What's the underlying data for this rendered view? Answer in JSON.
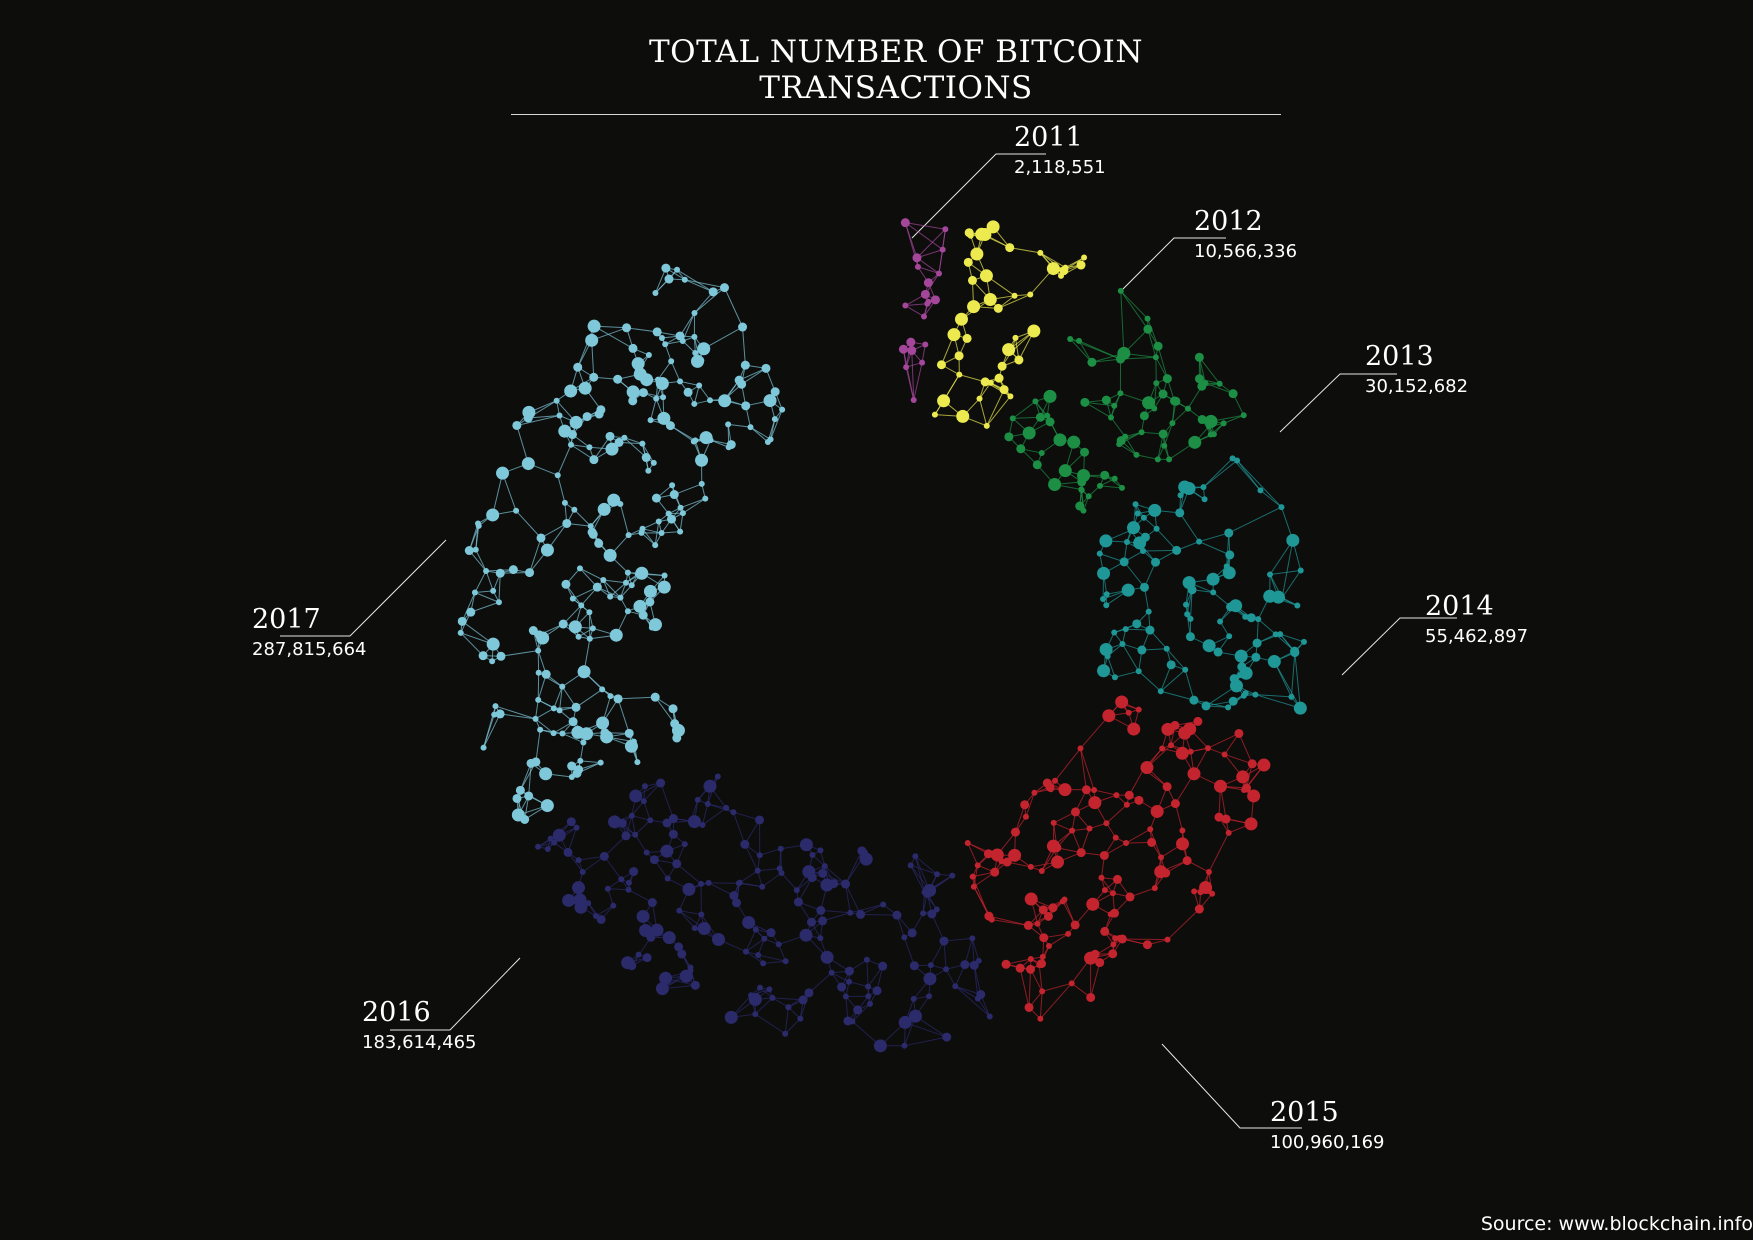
{
  "title": "TOTAL NUMBER OF BITCOIN TRANSACTIONS",
  "source": "Source: www.blockchain.info",
  "chart_data": {
    "type": "pie",
    "style": "network-ring",
    "legend": "none",
    "grid": false,
    "series": [
      {
        "year": "2011",
        "value": 2118551,
        "label": "2,118,551",
        "color": "#a4479b"
      },
      {
        "year": "2012",
        "value": 10566336,
        "label": "10,566,336",
        "color": "#ecea4e"
      },
      {
        "year": "2013",
        "value": 30152682,
        "label": "30,152,682",
        "color": "#1c8f45"
      },
      {
        "year": "2014",
        "value": 55462897,
        "label": "55,462,897",
        "color": "#1f9797"
      },
      {
        "year": "2015",
        "value": 100960169,
        "label": "100,960,169",
        "color": "#c3242e"
      },
      {
        "year": "2016",
        "value": 183614465,
        "label": "183,614,465",
        "color": "#2b2a6b"
      },
      {
        "year": "2017",
        "value": 287815664,
        "label": "287,815,664",
        "color": "#7fc8da"
      }
    ]
  }
}
